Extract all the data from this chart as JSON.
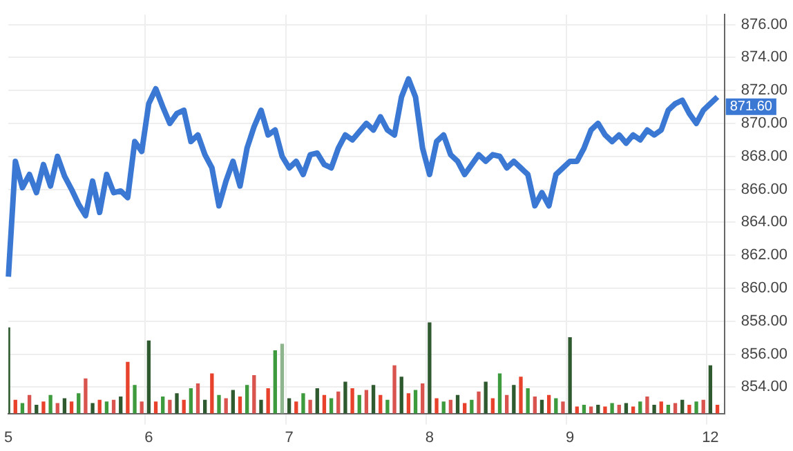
{
  "chart_data": {
    "type": "line",
    "ylim": [
      852.4,
      876.6
    ],
    "categories": [
      "5",
      null,
      null,
      null,
      null,
      null,
      null,
      null,
      null,
      null,
      null,
      null,
      null,
      null,
      null,
      null,
      null,
      null,
      null,
      null,
      "6",
      null,
      null,
      null,
      null,
      null,
      null,
      null,
      null,
      null,
      null,
      null,
      null,
      null,
      null,
      null,
      null,
      null,
      null,
      null,
      "7",
      null,
      null,
      null,
      null,
      null,
      null,
      null,
      null,
      null,
      null,
      null,
      null,
      null,
      null,
      null,
      null,
      null,
      null,
      null,
      "8",
      null,
      null,
      null,
      null,
      null,
      null,
      null,
      null,
      null,
      null,
      null,
      null,
      null,
      null,
      null,
      null,
      null,
      null,
      null,
      "9",
      null,
      null,
      null,
      null,
      null,
      null,
      null,
      null,
      null,
      null,
      null,
      null,
      null,
      null,
      null,
      null,
      null,
      null,
      null,
      "12",
      null,
      null
    ],
    "yticks": [
      {
        "value": 854,
        "label": "854.00"
      },
      {
        "value": 856,
        "label": "856.00"
      },
      {
        "value": 858,
        "label": "858.00"
      },
      {
        "value": 860,
        "label": "860.00"
      },
      {
        "value": 862,
        "label": "862.00"
      },
      {
        "value": 864,
        "label": "864.00"
      },
      {
        "value": 866,
        "label": "866.00"
      },
      {
        "value": 868,
        "label": "868.00"
      },
      {
        "value": 870,
        "label": "870.00"
      },
      {
        "value": 872,
        "label": "872.00"
      },
      {
        "value": 874,
        "label": "874.00"
      },
      {
        "value": 876,
        "label": "876.00"
      }
    ],
    "grid": true,
    "legend": false,
    "marker": "none",
    "line_style": "solid",
    "annotations": [
      "871.60"
    ],
    "series": [
      {
        "color": "#3a78d4",
        "values": [
          860.7,
          867.7,
          866.1,
          866.9,
          865.8,
          867.5,
          866.2,
          868,
          866.8,
          866,
          865.1,
          864.4,
          866.5,
          864.6,
          866.9,
          865.8,
          865.9,
          865.5,
          868.9,
          868.3,
          871.2,
          872.1,
          871,
          870,
          870.6,
          870.8,
          868.9,
          869.3,
          868.1,
          867.3,
          865,
          866.5,
          867.7,
          866.2,
          868.5,
          869.8,
          870.8,
          869.3,
          869.6,
          868,
          867.3,
          867.7,
          866.9,
          868.1,
          868.2,
          867.5,
          867.3,
          868.5,
          869.3,
          869,
          869.5,
          870,
          869.6,
          870.4,
          869.6,
          869.3,
          871.6,
          872.7,
          871.6,
          868.5,
          866.9,
          868.9,
          869.3,
          868.1,
          867.7,
          866.9,
          867.5,
          868.1,
          867.7,
          868.1,
          868,
          867.3,
          867.7,
          867.3,
          866.9,
          865,
          865.8,
          865,
          866.9,
          867.3,
          867.7,
          867.7,
          868.5,
          869.6,
          870,
          869.3,
          868.9,
          869.3,
          868.8,
          869.3,
          869,
          869.6,
          869.3,
          869.6,
          870.8,
          871.2,
          871.4,
          870.6,
          870,
          870.8,
          871.2,
          871.6,
          null
        ]
      },
      {
        "type": "bar",
        "colors": [
          "#2f5a2f",
          "#e8412c",
          "#3d9a3d",
          "#d9534f",
          "#2f5a2f",
          "#e8412c",
          "#3d9a3d",
          "#d9534f",
          "#2f5a2f",
          "#e8412c",
          "#3d9a3d",
          "#d9534f",
          "#2f5a2f",
          "#e8412c",
          "#3d9a3d",
          "#d9534f",
          "#2f5a2f",
          "#e8412c",
          "#3d9a3d",
          "#d9534f",
          "#2f5a2f",
          "#e8412c",
          "#3d9a3d",
          "#d9534f",
          "#2f5a2f",
          "#e8412c",
          "#3d9a3d",
          "#d9534f",
          "#2f5a2f",
          "#e8412c",
          "#3d9a3d",
          "#d9534f",
          "#2f5a2f",
          "#e8412c",
          "#3d9a3d",
          "#d9534f",
          "#2f5a2f",
          "#e8412c",
          "#3d9a3d",
          "#8fb58f",
          "#2f5a2f",
          "#e8412c",
          "#3d9a3d",
          "#d9534f",
          "#2f5a2f",
          "#e8412c",
          "#3d9a3d",
          "#d9534f",
          "#2f5a2f",
          "#e8412c",
          "#3d9a3d",
          "#d9534f",
          "#2f5a2f",
          "#e8412c",
          "#3d9a3d",
          "#d9534f",
          "#2f5a2f",
          "#e8412c",
          "#3d9a3d",
          "#d9534f",
          "#2f5a2f",
          "#e8412c",
          "#3d9a3d",
          "#d9534f",
          "#2f5a2f",
          "#e8412c",
          "#3d9a3d",
          "#d9534f",
          "#2f5a2f",
          "#e8412c",
          "#3d9a3d",
          "#d9534f",
          "#2f5a2f",
          "#e8412c",
          "#3d9a3d",
          "#d9534f",
          "#2f5a2f",
          "#e8412c",
          "#3d9a3d",
          "#d9534f",
          "#2f5a2f",
          "#e8412c",
          "#3d9a3d",
          "#d9534f",
          "#2f5a2f",
          "#e8412c",
          "#3d9a3d",
          "#d9534f",
          "#2f5a2f",
          "#e8412c",
          "#3d9a3d",
          "#d9534f",
          "#2f5a2f",
          "#e8412c",
          "#3d9a3d",
          "#d9534f",
          "#2f5a2f",
          "#e8412c",
          "#3d9a3d",
          "#d9534f",
          "#2f5a2f",
          "#e8412c",
          "#3d9a3d"
        ],
        "values": [
          857.6,
          853.2,
          853,
          853.5,
          852.9,
          853.1,
          853.5,
          853,
          853.3,
          853.1,
          853.6,
          854.5,
          853,
          853.2,
          853.1,
          853.2,
          853.4,
          855.5,
          854.1,
          853.1,
          856.8,
          853.1,
          853.4,
          853.2,
          853.6,
          853.2,
          853.9,
          854.2,
          853.2,
          854.8,
          853.5,
          853.3,
          853.8,
          853.4,
          854.1,
          854.7,
          853.2,
          853.9,
          856.2,
          856.6,
          853.3,
          853.1,
          853.6,
          853.2,
          853.9,
          853.5,
          853.3,
          853.7,
          854.3,
          853.9,
          853.5,
          853.8,
          854.1,
          853.5,
          853.2,
          855.3,
          854.6,
          853.6,
          853.8,
          854.2,
          857.9,
          853.3,
          853.1,
          853.2,
          853.5,
          853,
          853.2,
          853.7,
          854.3,
          853.3,
          854.8,
          853.5,
          854.1,
          854.6,
          853.9,
          853.4,
          853.2,
          853.5,
          853.3,
          853.1,
          857,
          852.8,
          852.9,
          852.8,
          852.9,
          852.8,
          853,
          852.9,
          853,
          852.8,
          853.1,
          853.4,
          852.9,
          853.1,
          852.9,
          853,
          853.2,
          852.9,
          853.1,
          853.2,
          855.3,
          852.9,
          null
        ]
      }
    ]
  }
}
